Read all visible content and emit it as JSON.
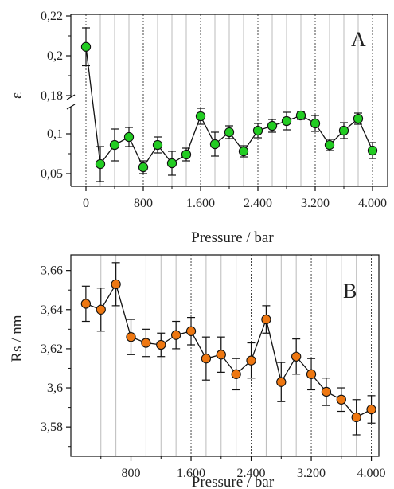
{
  "chart_data": [
    {
      "type": "scatter",
      "panel_label": "A",
      "title": "",
      "xlabel": "Pressure / bar",
      "ylabel": "ε",
      "xlim": [
        -100,
        4100
      ],
      "x_ticks": [
        0,
        800,
        1600,
        2400,
        3200,
        4000
      ],
      "x_tick_labels": [
        "0",
        "800",
        "1.600",
        "2.400",
        "3.200",
        "4.000"
      ],
      "y_ticks_upper": [
        0.18,
        0.2,
        0.22
      ],
      "y_tick_labels_upper": [
        "0,18",
        "0,2",
        "0,22"
      ],
      "y_ticks_lower": [
        0.05,
        0.1
      ],
      "y_tick_labels_lower": [
        "0,05",
        "0,1"
      ],
      "ylim_upper": [
        0.18,
        0.22
      ],
      "ylim_lower": [
        0.04,
        0.13
      ],
      "y_axis_break": true,
      "marker_color": "#22cc22",
      "grid": "vertical lines at each 200 bar; dotted at 0, 800, 1600, 2400, 3200, 4000",
      "series": [
        {
          "x": [
            0,
            200,
            400,
            600,
            800,
            1000,
            1200,
            1400,
            1600,
            1800,
            2000,
            2200,
            2400,
            2600,
            2800,
            3000,
            3200,
            3400,
            3600,
            3800,
            4000
          ],
          "y": [
            0.2045,
            0.062,
            0.086,
            0.096,
            0.058,
            0.086,
            0.063,
            0.074,
            0.122,
            0.087,
            0.102,
            0.078,
            0.104,
            0.11,
            0.116,
            0.123,
            0.113,
            0.086,
            0.104,
            0.119,
            0.079
          ],
          "err": [
            0.0095,
            0.022,
            0.02,
            0.012,
            0.008,
            0.01,
            0.015,
            0.008,
            0.01,
            0.015,
            0.008,
            0.007,
            0.009,
            0.008,
            0.011,
            0.005,
            0.01,
            0.007,
            0.01,
            0.007,
            0.01
          ]
        }
      ]
    },
    {
      "type": "scatter",
      "panel_label": "B",
      "title": "",
      "xlabel": "Pressure / bar",
      "ylabel": "Rs / nm",
      "xlim": [
        0,
        4100
      ],
      "x_ticks": [
        800,
        1600,
        2400,
        3200,
        4000
      ],
      "x_tick_labels": [
        "800",
        "1.600",
        "2.400",
        "3.200",
        "4.000"
      ],
      "y_ticks": [
        3.58,
        3.6,
        3.62,
        3.64,
        3.66
      ],
      "y_tick_labels": [
        "3,58",
        "3,6",
        "3,62",
        "3,64",
        "3,66"
      ],
      "ylim": [
        3.565,
        3.668
      ],
      "marker_color": "#ee7711",
      "grid": "vertical lines at each 200 bar; dotted at 800, 1600, 2400, 3200, 4000",
      "series": [
        {
          "x": [
            200,
            400,
            600,
            800,
            1000,
            1200,
            1400,
            1600,
            1800,
            2000,
            2200,
            2400,
            2600,
            2800,
            3000,
            3200,
            3400,
            3600,
            3800,
            4000
          ],
          "y": [
            3.643,
            3.64,
            3.653,
            3.626,
            3.623,
            3.622,
            3.627,
            3.629,
            3.615,
            3.617,
            3.607,
            3.614,
            3.635,
            3.603,
            3.616,
            3.607,
            3.598,
            3.594,
            3.585,
            3.589
          ],
          "err": [
            0.009,
            0.011,
            0.011,
            0.009,
            0.007,
            0.006,
            0.007,
            0.007,
            0.011,
            0.009,
            0.008,
            0.009,
            0.007,
            0.01,
            0.009,
            0.008,
            0.007,
            0.006,
            0.009,
            0.007
          ]
        }
      ]
    }
  ]
}
